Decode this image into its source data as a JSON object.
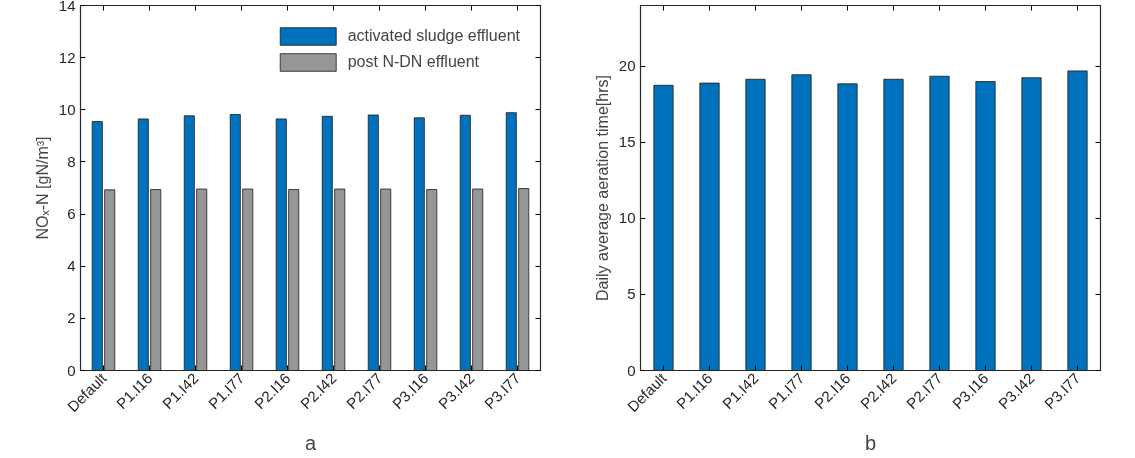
{
  "chart_data": [
    {
      "type": "bar",
      "ylabel": "NOₓ-N [gN/m³]",
      "categories": [
        "Default",
        "P1.I16",
        "P1.I42",
        "P1.I77",
        "P2.I16",
        "P2.I42",
        "P2.I77",
        "P3.I16",
        "P3.I42",
        "P3.I77"
      ],
      "series": [
        {
          "name": "activated sludge effluent",
          "color": "#0072bd",
          "values": [
            9.55,
            9.65,
            9.77,
            9.82,
            9.65,
            9.75,
            9.8,
            9.69,
            9.79,
            9.89
          ]
        },
        {
          "name": "post N-DN effluent",
          "color": "#969696",
          "values": [
            6.93,
            6.94,
            6.96,
            6.96,
            6.94,
            6.96,
            6.96,
            6.94,
            6.96,
            6.98
          ]
        }
      ],
      "ylim": [
        0,
        14
      ],
      "yticks": [
        0,
        2,
        4,
        6,
        8,
        10,
        12,
        14
      ],
      "grid": false,
      "legend": "top right",
      "annotations": [
        "a"
      ]
    },
    {
      "type": "bar",
      "ylabel": "Daily average aeration time[hrs]",
      "categories": [
        "Default",
        "P1.I16",
        "P1.I42",
        "P1.I77",
        "P2.I16",
        "P2.I42",
        "P2.I77",
        "P3.I16",
        "P3.I42",
        "P3.I77"
      ],
      "series": [
        {
          "color": "#0072bd",
          "values": [
            18.75,
            18.9,
            19.15,
            19.45,
            18.85,
            19.15,
            19.35,
            19.0,
            19.25,
            19.7
          ]
        }
      ],
      "ylim": [
        0,
        24
      ],
      "yticks": [
        0,
        5,
        10,
        15,
        20
      ],
      "grid": false,
      "annotations": [
        "b"
      ]
    }
  ]
}
